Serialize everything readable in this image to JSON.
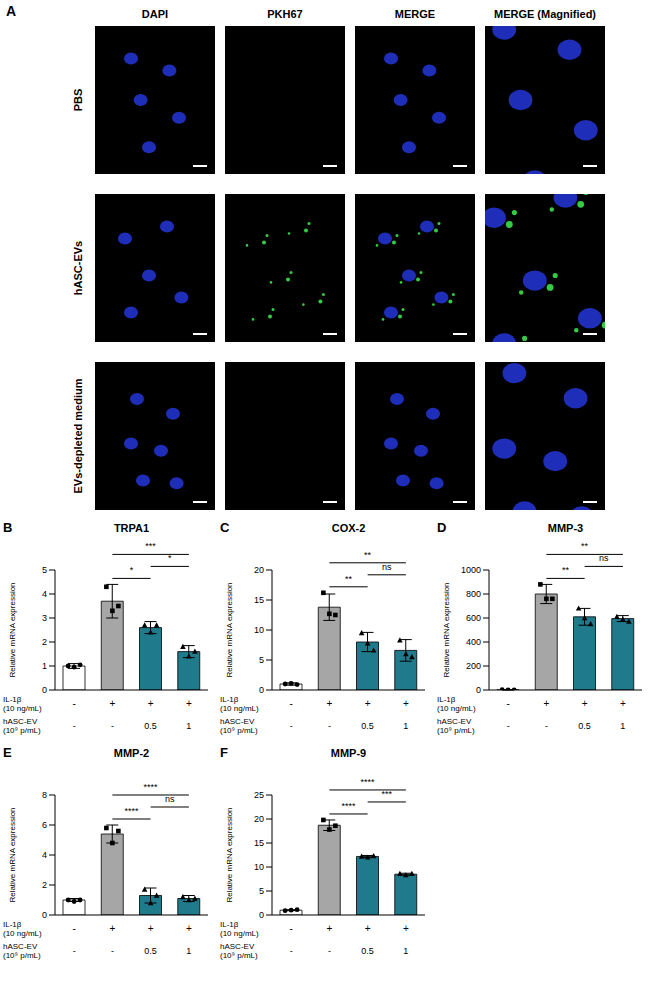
{
  "panel_a": {
    "panel": "A",
    "column_headers": [
      "DAPI",
      "PKH67",
      "MERGE",
      "MERGE (Magnified)"
    ],
    "row_labels": [
      "PBS",
      "hASC-EVs",
      "EVs-depleted medium"
    ]
  },
  "chart_data": [
    {
      "panel": "B",
      "type": "bar",
      "title": "TRPA1",
      "ylabel": "Relative mRNA expression",
      "categories": [
        null,
        null,
        null,
        null
      ],
      "condition_rows": [
        {
          "label": "IL-1β",
          "unit": "(10 ng/mL)",
          "values": [
            "-",
            "+",
            "+",
            "+"
          ]
        },
        {
          "label": "hASC-EV",
          "unit": "(10⁹ p/mL)",
          "values": [
            "-",
            "-",
            "0.5",
            "1"
          ]
        }
      ],
      "values": [
        1.0,
        3.7,
        2.6,
        1.6
      ],
      "errors": [
        0.1,
        0.7,
        0.25,
        0.25
      ],
      "points": [
        [
          1.0,
          0.95,
          1.05
        ],
        [
          4.3,
          3.3,
          3.5
        ],
        [
          2.7,
          2.4,
          2.7
        ],
        [
          1.8,
          1.4,
          1.6
        ]
      ],
      "colors": [
        "#ffffff",
        "#a6a6a6",
        "#1f7a8c",
        "#1f7a8c"
      ],
      "ylim": [
        0,
        5
      ],
      "yticks": [
        0,
        1,
        2,
        3,
        4,
        5
      ],
      "significance": [
        {
          "from": 1,
          "to": 2,
          "label": "*"
        },
        {
          "from": 1,
          "to": 3,
          "label": "***"
        },
        {
          "from": 2,
          "to": 3,
          "label": "*"
        }
      ]
    },
    {
      "panel": "C",
      "type": "bar",
      "title": "COX-2",
      "ylabel": "Relative mRNA expression",
      "categories": [
        null,
        null,
        null,
        null
      ],
      "condition_rows": [
        {
          "label": "IL-1β",
          "unit": "(10 ng/mL)",
          "values": [
            "-",
            "+",
            "+",
            "+"
          ]
        },
        {
          "label": "hASC-EV",
          "unit": "(10⁹ p/mL)",
          "values": [
            "-",
            "-",
            "0.5",
            "1"
          ]
        }
      ],
      "values": [
        1.0,
        13.8,
        8.0,
        6.6
      ],
      "errors": [
        0.2,
        2.2,
        1.6,
        1.8
      ],
      "points": [
        [
          1.0,
          1.1,
          0.9
        ],
        [
          16.2,
          12.7,
          12.5
        ],
        [
          9.5,
          7.8,
          6.6
        ],
        [
          8.3,
          6.0,
          5.5
        ]
      ],
      "colors": [
        "#ffffff",
        "#a6a6a6",
        "#1f7a8c",
        "#1f7a8c"
      ],
      "ylim": [
        0,
        20
      ],
      "yticks": [
        0,
        5,
        10,
        15,
        20
      ],
      "significance": [
        {
          "from": 1,
          "to": 2,
          "label": "**"
        },
        {
          "from": 1,
          "to": 3,
          "label": "**"
        },
        {
          "from": 2,
          "to": 3,
          "label": "ns"
        }
      ]
    },
    {
      "panel": "D",
      "type": "bar",
      "title": "MMP-3",
      "ylabel": "Relative mRNA expression",
      "categories": [
        null,
        null,
        null,
        null
      ],
      "condition_rows": [
        {
          "label": "IL-1β",
          "unit": "(10 ng/mL)",
          "values": [
            "-",
            "+",
            "+",
            "+"
          ]
        },
        {
          "label": "hASC-EV",
          "unit": "(10⁹ p/mL)",
          "values": [
            "-",
            "-",
            "0.5",
            "1"
          ]
        }
      ],
      "values": [
        1,
        800,
        610,
        595
      ],
      "errors": [
        1,
        80,
        70,
        25
      ],
      "points": [
        [
          2,
          1,
          1
        ],
        [
          880,
          760,
          760
        ],
        [
          680,
          600,
          550
        ],
        [
          610,
          590,
          570
        ]
      ],
      "colors": [
        "#ffffff",
        "#a6a6a6",
        "#1f7a8c",
        "#1f7a8c"
      ],
      "ylim": [
        0,
        1000
      ],
      "yticks": [
        0,
        200,
        400,
        600,
        800,
        1000
      ],
      "significance": [
        {
          "from": 1,
          "to": 2,
          "label": "**"
        },
        {
          "from": 1,
          "to": 3,
          "label": "**"
        },
        {
          "from": 2,
          "to": 3,
          "label": "ns"
        }
      ]
    },
    {
      "panel": "E",
      "type": "bar",
      "title": "MMP-2",
      "ylabel": "Relative mRNA expression",
      "categories": [
        null,
        null,
        null,
        null
      ],
      "condition_rows": [
        {
          "label": "IL-1β",
          "unit": "(10 ng/mL)",
          "values": [
            "-",
            "+",
            "+",
            "+"
          ]
        },
        {
          "label": "hASC-EV",
          "unit": "(10⁹ p/mL)",
          "values": [
            "-",
            "-",
            "0.5",
            "1"
          ]
        }
      ],
      "values": [
        1.0,
        5.4,
        1.3,
        1.1
      ],
      "errors": [
        0.1,
        0.6,
        0.5,
        0.2
      ],
      "points": [
        [
          1.0,
          0.9,
          1.0
        ],
        [
          5.8,
          4.8,
          5.6
        ],
        [
          1.7,
          0.8,
          1.3
        ],
        [
          1.2,
          1.0,
          1.1
        ]
      ],
      "colors": [
        "#ffffff",
        "#a6a6a6",
        "#1f7a8c",
        "#1f7a8c"
      ],
      "ylim": [
        0,
        8
      ],
      "yticks": [
        0,
        2,
        4,
        6,
        8
      ],
      "significance": [
        {
          "from": 1,
          "to": 2,
          "label": "****"
        },
        {
          "from": 1,
          "to": 3,
          "label": "****"
        },
        {
          "from": 2,
          "to": 3,
          "label": "ns"
        }
      ]
    },
    {
      "panel": "F",
      "type": "bar",
      "title": "MMP-9",
      "ylabel": "Relative mRNA expression",
      "categories": [
        null,
        null,
        null,
        null
      ],
      "condition_rows": [
        {
          "label": "IL-1β",
          "unit": "(10 ng/mL)",
          "values": [
            "-",
            "+",
            "+",
            "+"
          ]
        },
        {
          "label": "hASC-EV",
          "unit": "(10⁹ p/mL)",
          "values": [
            "-",
            "-",
            "0.5",
            "1"
          ]
        }
      ],
      "values": [
        1.0,
        18.7,
        12.2,
        8.5
      ],
      "errors": [
        0.1,
        1.1,
        0.2,
        0.2
      ],
      "points": [
        [
          0.9,
          1.0,
          1.1
        ],
        [
          19.8,
          17.8,
          18.6
        ],
        [
          12.2,
          12.0,
          12.3
        ],
        [
          8.6,
          8.3,
          8.6
        ]
      ],
      "colors": [
        "#ffffff",
        "#a6a6a6",
        "#1f7a8c",
        "#1f7a8c"
      ],
      "ylim": [
        0,
        25
      ],
      "yticks": [
        0,
        5,
        10,
        15,
        20,
        25
      ],
      "significance": [
        {
          "from": 1,
          "to": 2,
          "label": "****"
        },
        {
          "from": 1,
          "to": 3,
          "label": "****"
        },
        {
          "from": 2,
          "to": 3,
          "label": "***"
        }
      ]
    }
  ]
}
